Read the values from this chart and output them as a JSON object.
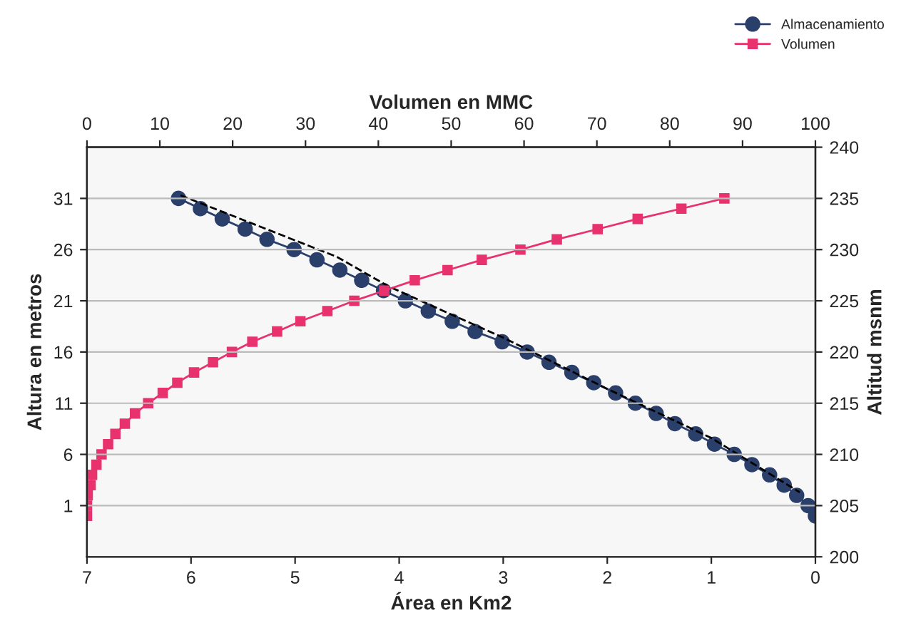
{
  "chart_data": {
    "type": "line",
    "xlabel": "Área en Km2",
    "x2label": "Volumen en MMC",
    "ylabel": "Altura en metros",
    "y2label": "Altitud msnm",
    "xlim": [
      7,
      0
    ],
    "xticks": [
      7,
      6,
      5,
      4,
      3,
      2,
      1,
      0
    ],
    "x2lim": [
      0,
      100
    ],
    "x2ticks": [
      0,
      10,
      20,
      30,
      40,
      50,
      60,
      70,
      80,
      90,
      100
    ],
    "ylim": [
      -4,
      36
    ],
    "yticks": [
      1,
      6,
      11,
      16,
      21,
      26,
      31
    ],
    "y2lim": [
      200,
      240
    ],
    "y2ticks": [
      200,
      205,
      210,
      215,
      220,
      225,
      230,
      235,
      240
    ],
    "grid": "y",
    "legend": "top right",
    "series": [
      {
        "name": "Almacenamiento",
        "color": "#2b3f6b",
        "marker": "circle",
        "line_style": "solid",
        "x": [
          0.0,
          0.07,
          0.18,
          0.3,
          0.44,
          0.61,
          0.78,
          0.97,
          1.15,
          1.35,
          1.53,
          1.73,
          1.92,
          2.13,
          2.34,
          2.56,
          2.77,
          3.01,
          3.27,
          3.49,
          3.72,
          3.94,
          4.15,
          4.36,
          4.57,
          4.79,
          5.01,
          5.27,
          5.48,
          5.7,
          5.91,
          6.12
        ],
        "values": [
          0,
          1,
          2,
          3,
          4,
          5,
          6,
          7,
          8,
          9,
          10,
          11,
          12,
          13,
          14,
          15,
          16,
          17,
          18,
          19,
          20,
          21,
          22,
          23,
          24,
          25,
          26,
          27,
          28,
          29,
          30,
          31
        ]
      },
      {
        "name": "Volumen",
        "color": "#e8326e",
        "marker": "square",
        "line_style": "solid",
        "axis": "x2",
        "x": [
          0,
          0,
          0.1,
          0.5,
          0.7,
          1.3,
          2.0,
          2.9,
          3.9,
          5.2,
          6.6,
          8.4,
          10.4,
          12.4,
          14.7,
          17.3,
          19.9,
          22.7,
          26.1,
          29.3,
          33.0,
          36.7,
          40.8,
          45.0,
          49.5,
          54.2,
          59.5,
          64.5,
          70.1,
          75.6,
          81.6,
          87.5
        ],
        "values": [
          0,
          1,
          2,
          3,
          4,
          5,
          6,
          7,
          8,
          9,
          10,
          11,
          12,
          13,
          14,
          15,
          16,
          17,
          18,
          19,
          20,
          21,
          22,
          23,
          24,
          25,
          26,
          27,
          28,
          29,
          30,
          31
        ]
      },
      {
        "color": "#000000",
        "marker": "none",
        "line_style": "dashed",
        "x": [
          6.1,
          4.6,
          4.1,
          3.0,
          2.0,
          1.0,
          0.15
        ],
        "values": [
          31.3,
          25.3,
          22.4,
          17.4,
          12.4,
          7.6,
          2.3
        ]
      }
    ]
  }
}
